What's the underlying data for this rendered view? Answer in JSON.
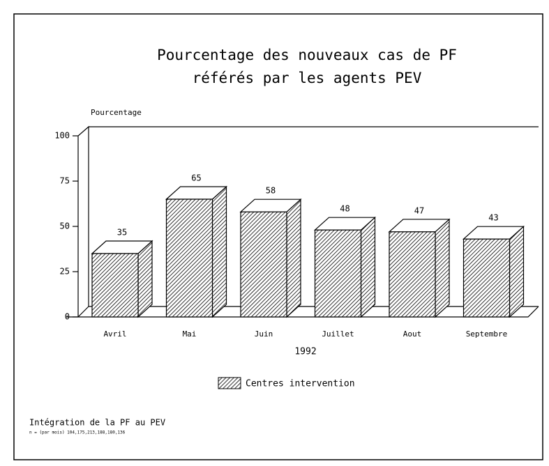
{
  "chart_data": {
    "type": "bar3d",
    "title": [
      "Pourcentage des nouveaux cas de PF",
      "référés par les agents PEV"
    ],
    "y_label": "Pourcentage",
    "x_label": "1992",
    "categories": [
      "Avril",
      "Mai",
      "Juin",
      "Juillet",
      "Aout",
      "Septembre"
    ],
    "series": [
      {
        "name": "Centres intervention",
        "color": "#000000",
        "values": [
          35,
          65,
          58,
          48,
          47,
          43
        ]
      }
    ],
    "ylim": [
      0,
      100
    ],
    "yticks": [
      0,
      25,
      50,
      75,
      100
    ],
    "grid": false,
    "legend": "bottom",
    "footnote": [
      "Intégration de la PF au PEV",
      "n = (par mois) 104,175,213,188,180,136"
    ]
  }
}
